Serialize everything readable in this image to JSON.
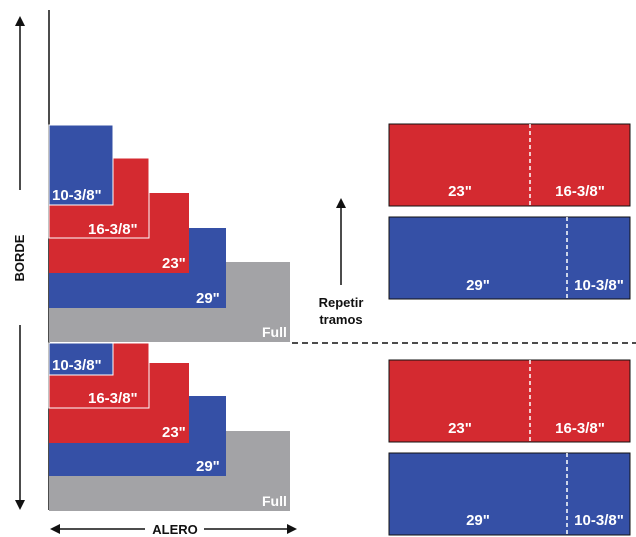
{
  "colors": {
    "red": "#d42a30",
    "blue": "#3550a6",
    "gray": "#a3a3a6",
    "line": "#111111"
  },
  "axis": {
    "vertical": "BORDE",
    "horizontal": "ALERO"
  },
  "repeat_note": {
    "line1": "Repetir",
    "line2": "tramos"
  },
  "stack_top": {
    "b1": "10-3/8\"",
    "b2": "16-3/8\"",
    "b3": "23\"",
    "b4": "29\"",
    "b5": "Full"
  },
  "stack_bottom": {
    "b1": "10-3/8\"",
    "b2": "16-3/8\"",
    "b3": "23\"",
    "b4": "29\"",
    "b5": "Full"
  },
  "rows": {
    "r1": {
      "left": "23\"",
      "right": "16-3/8\""
    },
    "r2": {
      "left": "29\"",
      "right": "10-3/8\""
    },
    "r3": {
      "left": "23\"",
      "right": "16-3/8\""
    },
    "r4": {
      "left": "29\"",
      "right": "10-3/8\""
    }
  }
}
